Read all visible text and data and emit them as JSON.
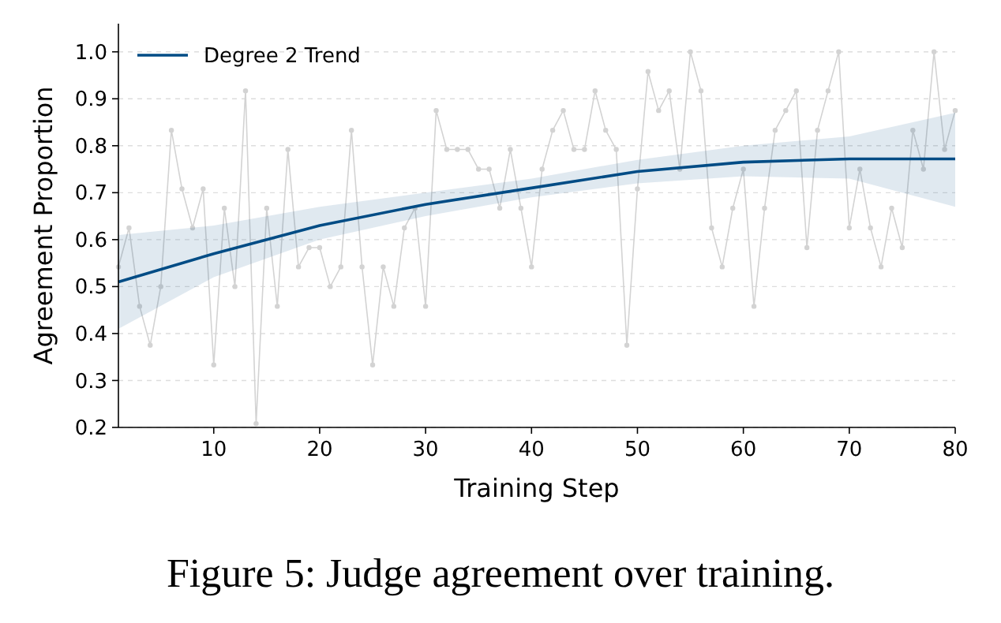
{
  "chart_data": {
    "type": "line",
    "title": "Figure 5: Judge agreement over training.",
    "xlabel": "Training Step",
    "ylabel": "Agreement Proportion",
    "xlim": [
      1,
      80
    ],
    "ylim": [
      0.2,
      1.06
    ],
    "xticks": [
      10,
      20,
      30,
      40,
      50,
      60,
      70,
      80
    ],
    "yticks": [
      0.2,
      0.3,
      0.4,
      0.5,
      0.6,
      0.7,
      0.8,
      0.9,
      {
        "value": 1,
        "label": "1.0"
      }
    ],
    "grid": "y",
    "legend": "top left",
    "series": [
      {
        "color": "#d3d3d3",
        "marker": "circle",
        "x": [
          1,
          2,
          3,
          4,
          5,
          6,
          7,
          8,
          9,
          10,
          11,
          12,
          13,
          14,
          15,
          16,
          17,
          18,
          19,
          20,
          21,
          22,
          23,
          24,
          25,
          26,
          27,
          28,
          29,
          30,
          31,
          32,
          33,
          34,
          35,
          36,
          37,
          38,
          39,
          40,
          41,
          42,
          43,
          44,
          45,
          46,
          47,
          48,
          49,
          50,
          51,
          52,
          53,
          54,
          55,
          56,
          57,
          58,
          59,
          60,
          61,
          62,
          63,
          64,
          65,
          66,
          67,
          68,
          69,
          70,
          71,
          72,
          73,
          74,
          75,
          76,
          77,
          78,
          79,
          80
        ],
        "values": [
          0.542,
          0.625,
          0.458,
          0.375,
          0.5,
          0.833,
          0.708,
          0.625,
          0.708,
          0.333,
          0.667,
          0.5,
          0.917,
          0.208,
          0.667,
          0.458,
          0.792,
          0.542,
          0.583,
          0.583,
          0.5,
          0.542,
          0.833,
          0.542,
          0.333,
          0.542,
          0.458,
          0.625,
          0.667,
          0.458,
          0.875,
          0.792,
          0.792,
          0.792,
          0.75,
          0.75,
          0.667,
          0.792,
          0.667,
          0.542,
          0.75,
          0.833,
          0.875,
          0.792,
          0.792,
          0.917,
          0.833,
          0.792,
          0.375,
          0.708,
          0.958,
          0.875,
          0.917,
          0.75,
          1.0,
          0.917,
          0.625,
          0.542,
          0.667,
          0.75,
          0.458,
          0.667,
          0.833,
          0.875,
          0.917,
          0.583,
          0.833,
          0.917,
          1.0,
          0.625,
          0.75,
          0.625,
          0.542,
          0.667,
          0.583,
          0.833,
          0.75,
          1.0,
          0.792,
          0.875
        ]
      },
      {
        "name": "Degree 2 Trend",
        "color": "#004c85",
        "marker": "none",
        "x": [
          1,
          10,
          20,
          30,
          40,
          50,
          60,
          70,
          80
        ],
        "values": [
          0.51,
          0.57,
          0.63,
          0.675,
          0.71,
          0.745,
          0.765,
          0.772,
          0.772
        ],
        "lower": [
          0.41,
          0.52,
          0.6,
          0.65,
          0.69,
          0.72,
          0.735,
          0.73,
          0.67
        ],
        "upper": [
          0.61,
          0.63,
          0.67,
          0.7,
          0.73,
          0.77,
          0.8,
          0.82,
          0.87
        ]
      }
    ]
  }
}
